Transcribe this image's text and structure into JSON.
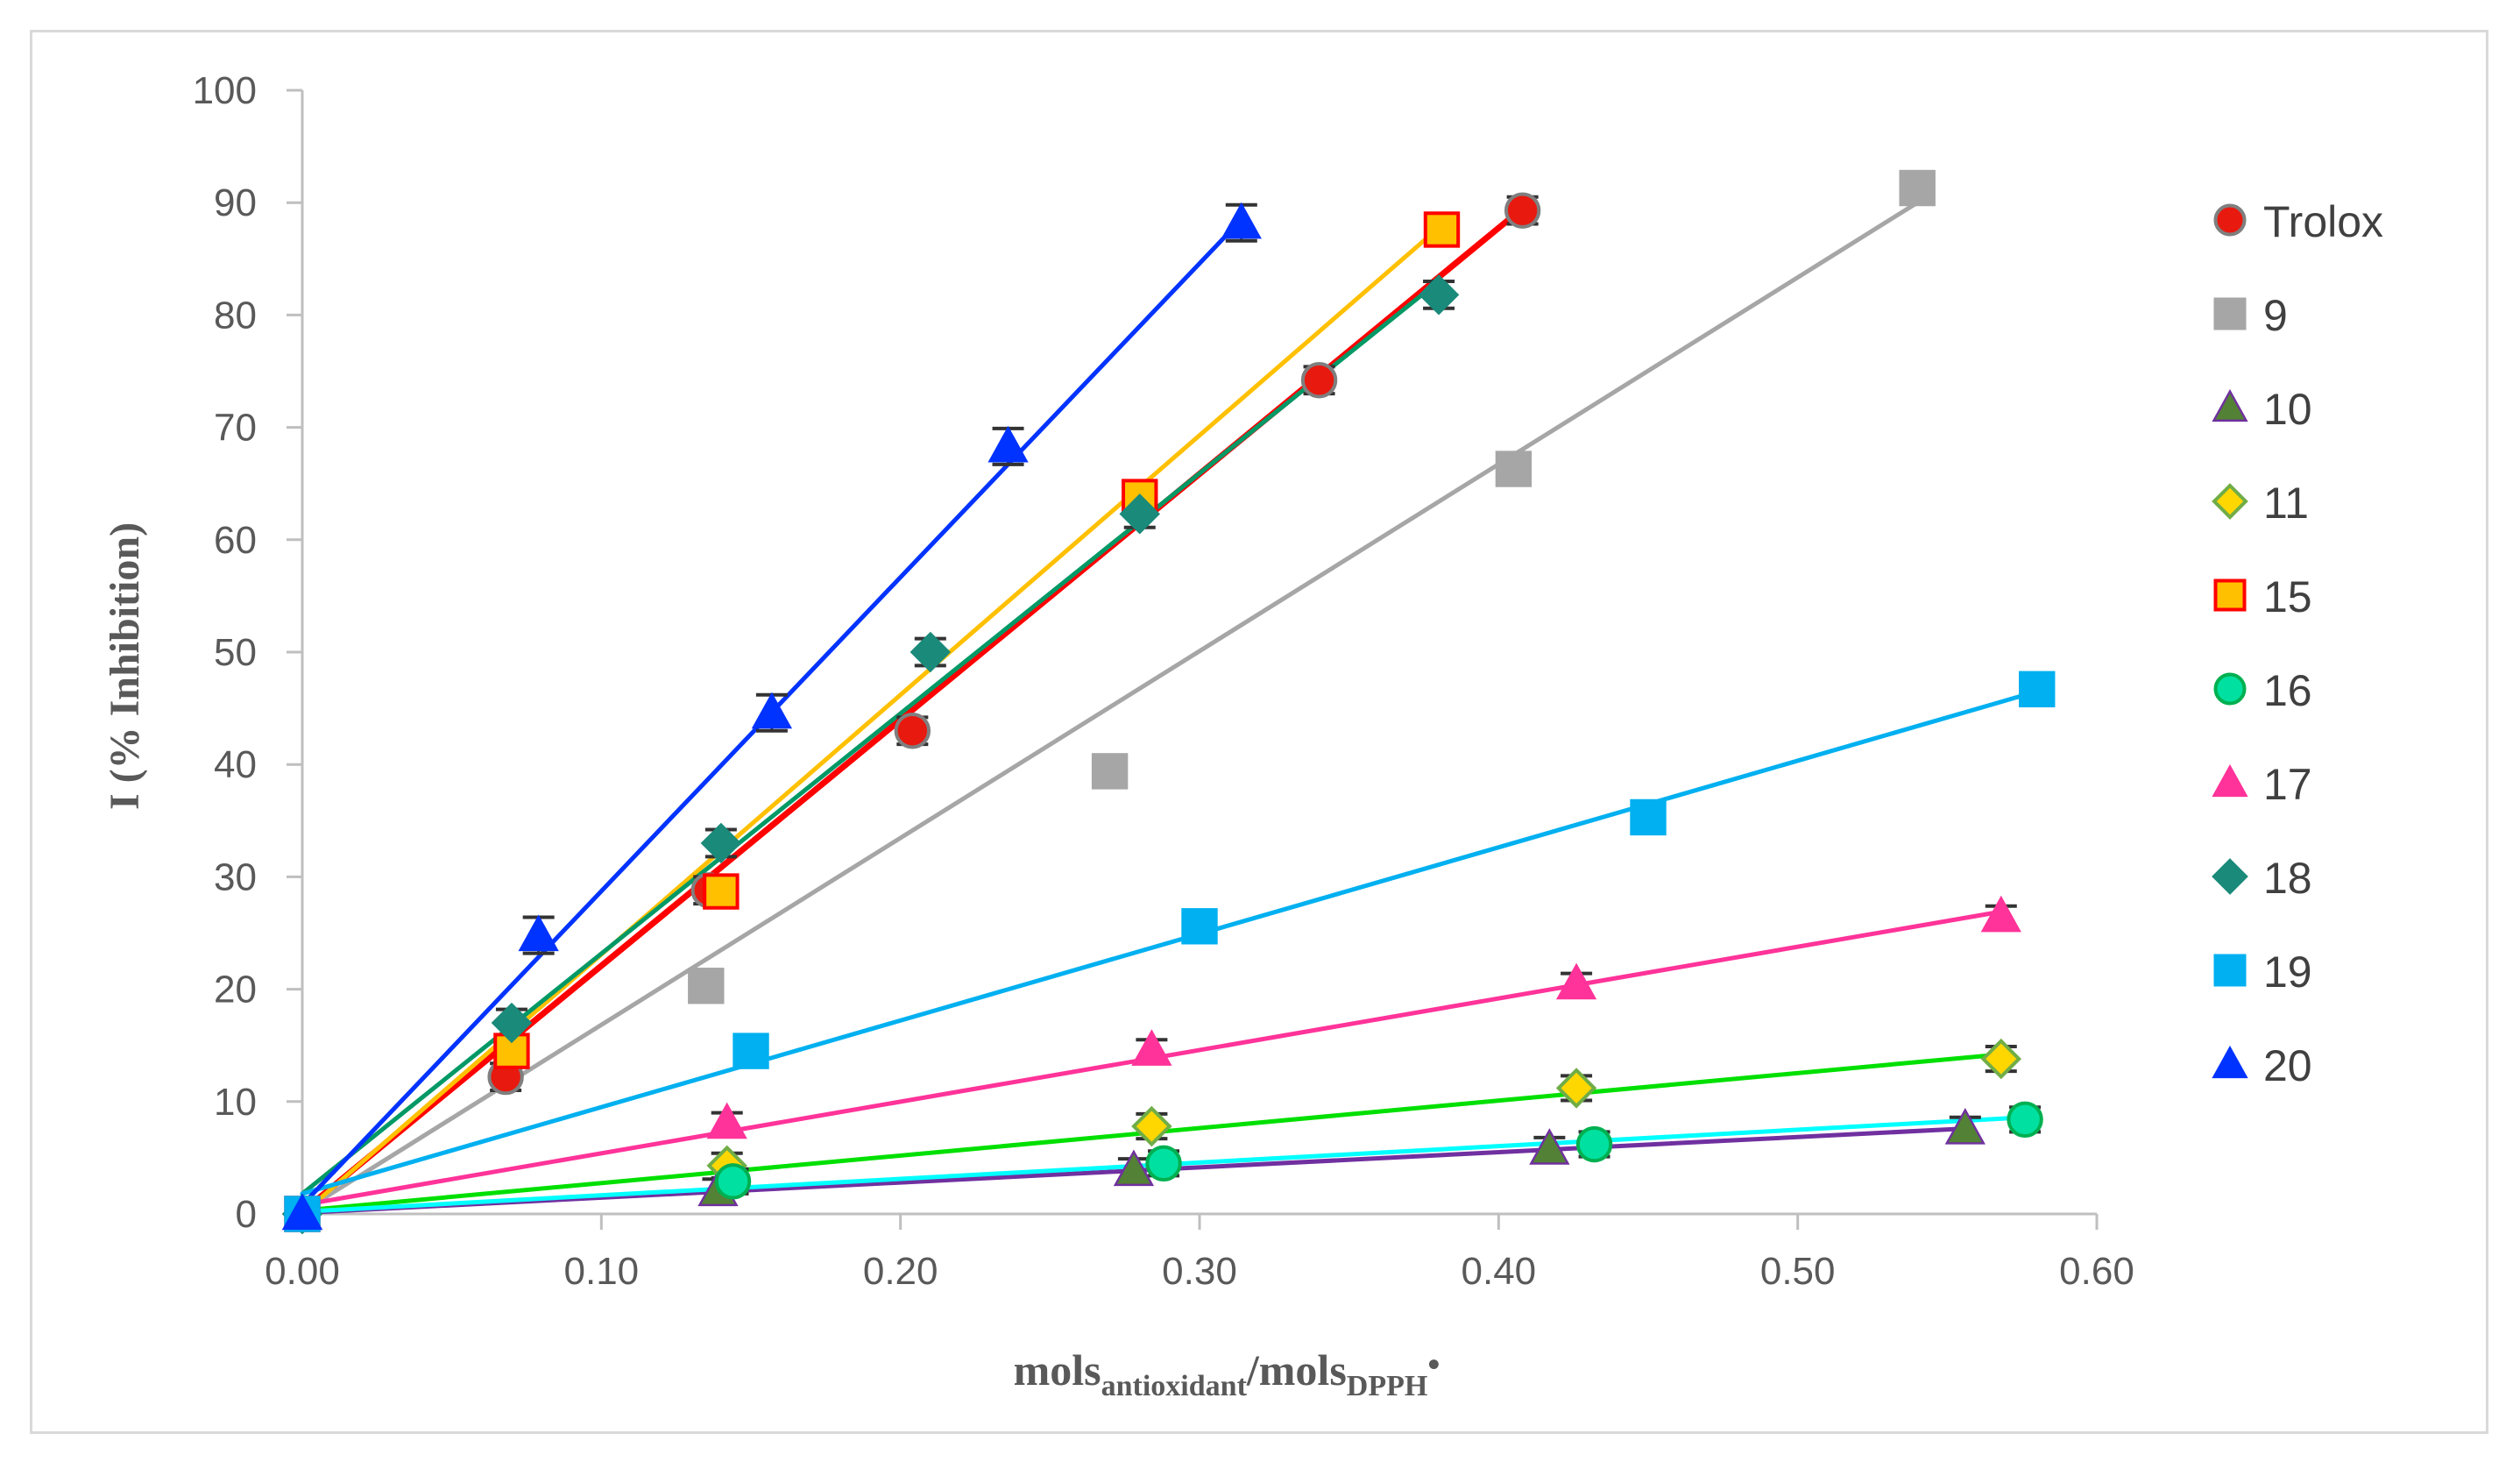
{
  "chart_data": {
    "type": "scatter",
    "title": "",
    "xlabel": {
      "main": "mols",
      "sub1": "antioxidant",
      "mid": "/mols",
      "sub2": "DPPH",
      "sup": "•"
    },
    "ylabel": "I (% Inhibition)",
    "xlim": [
      0,
      0.6
    ],
    "ylim": [
      0,
      100
    ],
    "xticks": [
      "0.00",
      "0.10",
      "0.20",
      "0.30",
      "0.40",
      "0.50",
      "0.60"
    ],
    "yticks": [
      "0",
      "10",
      "20",
      "30",
      "40",
      "50",
      "60",
      "70",
      "80",
      "90",
      "100"
    ],
    "legend_position": "right",
    "series": [
      {
        "name": "Trolox",
        "marker": "circle",
        "marker_color": "#e8190f",
        "marker_edge": "#7f7f7f",
        "line_color": "#ff0000",
        "points": [
          [
            0,
            0
          ],
          [
            0.068,
            12.2
          ],
          [
            0.136,
            28.8
          ],
          [
            0.204,
            43.0
          ],
          [
            0.34,
            74.2
          ],
          [
            0.408,
            89.3
          ]
        ],
        "fit": [
          [
            0,
            0.2
          ],
          [
            0.408,
            89.5
          ]
        ],
        "err": 1.2
      },
      {
        "name": "9",
        "marker": "square",
        "marker_color": "#a6a6a6",
        "marker_edge": "#a6a6a6",
        "line_color": "#a6a6a6",
        "points": [
          [
            0,
            0
          ],
          [
            0.135,
            20.3
          ],
          [
            0.27,
            39.4
          ],
          [
            0.405,
            66.3
          ],
          [
            0.54,
            91.3
          ]
        ],
        "fit": [
          [
            0,
            0.2
          ],
          [
            0.54,
            90.0
          ]
        ],
        "err": 1.3
      },
      {
        "name": "10",
        "marker": "triangle",
        "marker_color": "#538135",
        "marker_edge": "#7030a0",
        "line_color": "#7030a0",
        "points": [
          [
            0,
            0
          ],
          [
            0.139,
            2.1
          ],
          [
            0.278,
            3.9
          ],
          [
            0.417,
            5.8
          ],
          [
            0.556,
            7.6
          ]
        ],
        "fit": [
          [
            0,
            0.1
          ],
          [
            0.556,
            7.6
          ]
        ],
        "err": 1.0
      },
      {
        "name": "11",
        "marker": "diamond",
        "marker_color": "#ffd700",
        "marker_edge": "#70ad47",
        "line_color": "#00e000",
        "points": [
          [
            0,
            0
          ],
          [
            0.142,
            4.3
          ],
          [
            0.284,
            7.8
          ],
          [
            0.426,
            11.2
          ],
          [
            0.568,
            13.8
          ]
        ],
        "fit": [
          [
            0,
            0.3
          ],
          [
            0.568,
            14.2
          ]
        ],
        "err": 1.1
      },
      {
        "name": "15",
        "marker": "square",
        "marker_color": "#ffc000",
        "marker_edge": "#ff0000",
        "line_color": "#ffc000",
        "points": [
          [
            0,
            0
          ],
          [
            0.07,
            14.5
          ],
          [
            0.14,
            28.7
          ],
          [
            0.28,
            63.8
          ],
          [
            0.381,
            87.6
          ]
        ],
        "fit": [
          [
            0,
            0
          ],
          [
            0.381,
            88.0
          ]
        ],
        "err": 1.2
      },
      {
        "name": "16",
        "marker": "circle",
        "marker_color": "#00e0a0",
        "marker_edge": "#00b050",
        "line_color": "#00ffff",
        "points": [
          [
            0,
            0
          ],
          [
            0.144,
            2.9
          ],
          [
            0.288,
            4.5
          ],
          [
            0.432,
            6.2
          ],
          [
            0.576,
            8.4
          ]
        ],
        "fit": [
          [
            0,
            0.2
          ],
          [
            0.576,
            8.6
          ]
        ],
        "err": 1.1
      },
      {
        "name": "17",
        "marker": "triangle",
        "marker_color": "#ff3399",
        "marker_edge": "#ff3399",
        "line_color": "#ff3399",
        "points": [
          [
            0,
            0
          ],
          [
            0.142,
            8.1
          ],
          [
            0.284,
            14.6
          ],
          [
            0.426,
            20.5
          ],
          [
            0.568,
            26.5
          ]
        ],
        "fit": [
          [
            0,
            0.8
          ],
          [
            0.568,
            26.9
          ]
        ],
        "err": 0.9
      },
      {
        "name": "18",
        "marker": "diamond",
        "marker_color": "#1a8a7a",
        "marker_edge": "#1a8a7a",
        "line_color": "#009966",
        "points": [
          [
            0,
            0
          ],
          [
            0.07,
            17.0
          ],
          [
            0.14,
            33.0
          ],
          [
            0.21,
            50.0
          ],
          [
            0.28,
            62.3
          ],
          [
            0.38,
            81.8
          ]
        ],
        "fit": [
          [
            0,
            1.8
          ],
          [
            0.38,
            83.0
          ]
        ],
        "err": 1.2
      },
      {
        "name": "19",
        "marker": "square",
        "marker_color": "#00b0f0",
        "marker_edge": "#00b0f0",
        "line_color": "#00b0f0",
        "points": [
          [
            0,
            0
          ],
          [
            0.15,
            14.5
          ],
          [
            0.3,
            25.6
          ],
          [
            0.45,
            35.3
          ],
          [
            0.58,
            46.7
          ]
        ],
        "fit": [
          [
            0,
            1.8
          ],
          [
            0.58,
            46.5
          ]
        ],
        "err": 1.3
      },
      {
        "name": "20",
        "marker": "triangle",
        "marker_color": "#0033ff",
        "marker_edge": "#0033ff",
        "line_color": "#0033ff",
        "points": [
          [
            0,
            0
          ],
          [
            0.079,
            24.8
          ],
          [
            0.157,
            44.6
          ],
          [
            0.236,
            68.3
          ],
          [
            0.314,
            88.2
          ]
        ],
        "fit": [
          [
            0,
            0.8
          ],
          [
            0.314,
            88.5
          ]
        ],
        "err": 1.6
      }
    ]
  }
}
